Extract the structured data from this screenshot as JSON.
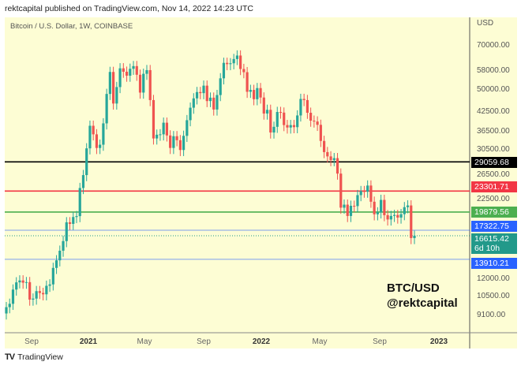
{
  "header": {
    "published": "rektcapital published on TradingView.com, Nov 14, 2022 14:23 UTC"
  },
  "footer": {
    "brand": "TradingView"
  },
  "watermark": {
    "line1": "BTC/USD",
    "line2": "@rektcapital"
  },
  "chart_data": {
    "type": "candlestick",
    "title": "Bitcoin / U.S. Dollar, 1W, COINBASE",
    "y_unit": "USD",
    "y_scale": "log",
    "ylim": [
      8500,
      75000
    ],
    "y_ticks": [
      "70000.00",
      "58000.00",
      "50000.00",
      "42500.00",
      "36500.00",
      "30500.00",
      "26500.00",
      "22500.00",
      "12000.00",
      "10500.00",
      "9100.00"
    ],
    "x_ticks": [
      {
        "label": "Sep",
        "bold": false
      },
      {
        "label": "2021",
        "bold": true
      },
      {
        "label": "May",
        "bold": false
      },
      {
        "label": "Sep",
        "bold": false
      },
      {
        "label": "2022",
        "bold": true
      },
      {
        "label": "May",
        "bold": false
      },
      {
        "label": "Sep",
        "bold": false
      },
      {
        "label": "2023",
        "bold": true
      }
    ],
    "x_start": "2020-07-13",
    "x_end": "2022-11-14",
    "interval": "1W",
    "first_open": 9230,
    "closes": [
      9680,
      9930,
      11060,
      11680,
      11850,
      11650,
      11700,
      10250,
      10330,
      10930,
      10780,
      10670,
      11380,
      11500,
      13030,
      13800,
      14840,
      15960,
      18400,
      18180,
      19150,
      19280,
      23850,
      26300,
      32200,
      38200,
      35800,
      32290,
      33100,
      38900,
      48600,
      57400,
      45200,
      51200,
      59000,
      57500,
      55800,
      58800,
      60000,
      56200,
      49100,
      56600,
      58200,
      46400,
      34700,
      35700,
      35800,
      39100,
      35500,
      32300,
      35300,
      34250,
      31800,
      35400,
      39850,
      43800,
      47000,
      49300,
      48900,
      51750,
      46050,
      47250,
      43200,
      48200,
      54700,
      61500,
      60900,
      61300,
      63300,
      65000,
      58700,
      57300,
      49400,
      50100,
      46700,
      50800,
      47300,
      41900,
      43100,
      36300,
      37900,
      42400,
      42200,
      38400,
      37700,
      38400,
      37800,
      41300,
      46800,
      46400,
      42150,
      39700,
      39450,
      38470,
      34060,
      31300,
      30300,
      29450,
      29900,
      26600,
      20550,
      21030,
      19300,
      20850,
      20800,
      22600,
      23300,
      23200,
      24300,
      21500,
      19550,
      19830,
      21800,
      19420,
      18800,
      19310,
      19450,
      19070,
      19570,
      20630,
      20900,
      16330,
      16615
    ],
    "levels": [
      {
        "price": "29059.68",
        "value": 29059.68,
        "color": "#000000"
      },
      {
        "price": "23301.71",
        "value": 23301.71,
        "color": "#f23645"
      },
      {
        "price": "19879.56",
        "value": 19879.56,
        "color": "#4caf50"
      },
      {
        "price": "17322.75",
        "value": 17322.75,
        "color": "#2962ff"
      },
      {
        "price": "13910.21",
        "value": 13910.21,
        "color": "#2962ff"
      }
    ],
    "last_price": {
      "price": "16615.42",
      "countdown": "6d 10h",
      "color": "#22998a"
    },
    "colors": {
      "up": "#26a69a",
      "down": "#ef5350"
    }
  }
}
